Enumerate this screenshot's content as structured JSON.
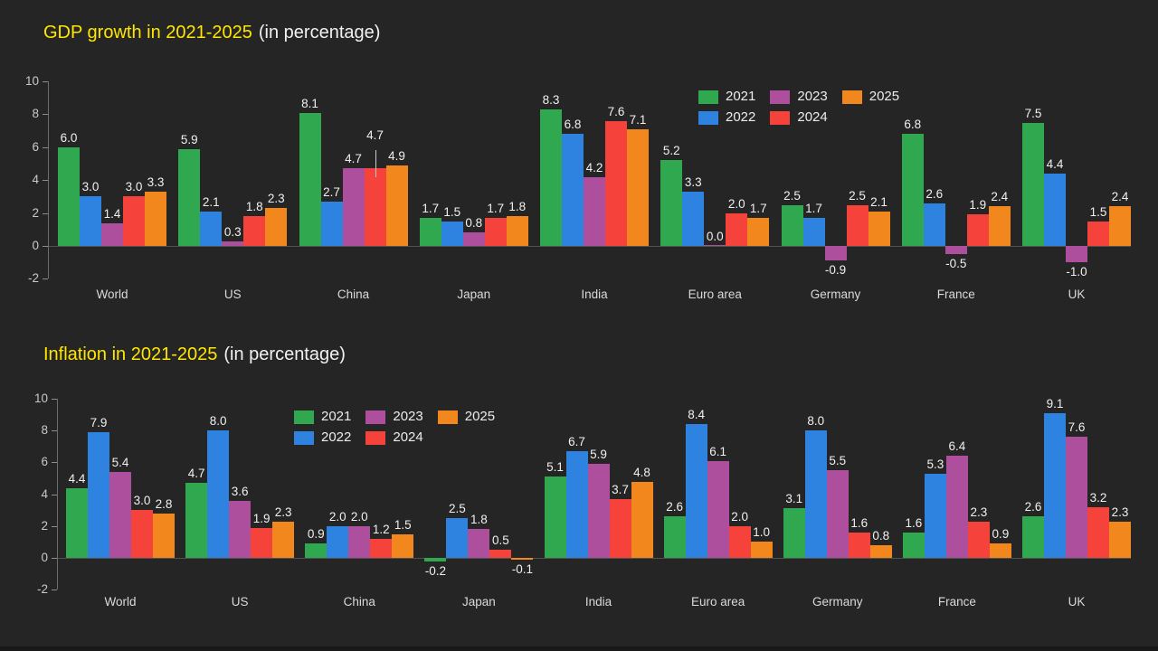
{
  "page": {
    "background": "#252525",
    "footer_bar_color": "#191919"
  },
  "colors": {
    "title_yellow": "#FFE600",
    "subtitle_white": "#F1F1F1",
    "axis_line": "#6e6e6e",
    "zero_line": "#515151",
    "tick_text": "#c9c9c9",
    "value_text": "#f0f0f0",
    "category_text": "#dadada"
  },
  "chart_data": [
    {
      "type": "bar",
      "title": "GDP growth in 2021-2025",
      "subtitle": "(in percentage)",
      "categories": [
        "World",
        "US",
        "China",
        "Japan",
        "India",
        "Euro area",
        "Germany",
        "France",
        "UK"
      ],
      "series": [
        {
          "name": "2021",
          "color": "#2FA84F",
          "values": [
            6.0,
            5.9,
            8.1,
            1.7,
            8.3,
            5.2,
            2.5,
            6.8,
            7.5
          ]
        },
        {
          "name": "2022",
          "color": "#2E82E0",
          "values": [
            3.0,
            2.1,
            2.7,
            1.5,
            6.8,
            3.3,
            1.7,
            2.6,
            4.4
          ]
        },
        {
          "name": "2023",
          "color": "#AD4F9D",
          "values": [
            1.4,
            0.3,
            4.7,
            0.8,
            4.2,
            0.0,
            -0.9,
            -0.5,
            -1.0
          ]
        },
        {
          "name": "2024",
          "color": "#F5423B",
          "values": [
            3.0,
            1.8,
            4.7,
            1.7,
            7.6,
            2.0,
            2.5,
            1.9,
            1.5
          ]
        },
        {
          "name": "2025",
          "color": "#F2881D",
          "values": [
            3.3,
            2.3,
            4.9,
            1.8,
            7.1,
            1.7,
            2.1,
            2.4,
            2.4
          ]
        }
      ],
      "ylim": [
        -2,
        10
      ],
      "yticks": [
        10,
        8,
        6,
        4,
        2,
        0,
        -2
      ],
      "grid": false,
      "legend_position": "inside-top-right",
      "legend_columns": [
        [
          "2021",
          "2022"
        ],
        [
          "2023",
          "2024"
        ],
        [
          "2025"
        ]
      ],
      "callouts": [
        {
          "series": "2024",
          "category": "China",
          "lift": 26
        }
      ]
    },
    {
      "type": "bar",
      "title": "Inflation in 2021-2025",
      "subtitle": "(in percentage)",
      "categories": [
        "World",
        "US",
        "China",
        "Japan",
        "India",
        "Euro area",
        "Germany",
        "France",
        "UK"
      ],
      "series": [
        {
          "name": "2021",
          "color": "#2FA84F",
          "values": [
            4.4,
            4.7,
            0.9,
            -0.2,
            5.1,
            2.6,
            3.1,
            1.6,
            2.6
          ]
        },
        {
          "name": "2022",
          "color": "#2E82E0",
          "values": [
            7.9,
            8.0,
            2.0,
            2.5,
            6.7,
            8.4,
            8.0,
            5.3,
            9.1
          ]
        },
        {
          "name": "2023",
          "color": "#AD4F9D",
          "values": [
            5.4,
            3.6,
            2.0,
            1.8,
            5.9,
            6.1,
            5.5,
            6.4,
            7.6
          ]
        },
        {
          "name": "2024",
          "color": "#F5423B",
          "values": [
            3.0,
            1.9,
            1.2,
            0.5,
            3.7,
            2.0,
            1.6,
            2.3,
            3.2
          ]
        },
        {
          "name": "2025",
          "color": "#F2881D",
          "values": [
            2.8,
            2.3,
            1.5,
            -0.1,
            4.8,
            1.0,
            0.8,
            0.9,
            2.3
          ]
        }
      ],
      "ylim": [
        -2,
        10
      ],
      "yticks": [
        10,
        8,
        6,
        4,
        2,
        0,
        -2
      ],
      "grid": false,
      "legend_position": "inside-top-left-of-plot",
      "legend_columns": [
        [
          "2021",
          "2022"
        ],
        [
          "2023",
          "2024"
        ],
        [
          "2025"
        ]
      ],
      "callouts": []
    }
  ]
}
